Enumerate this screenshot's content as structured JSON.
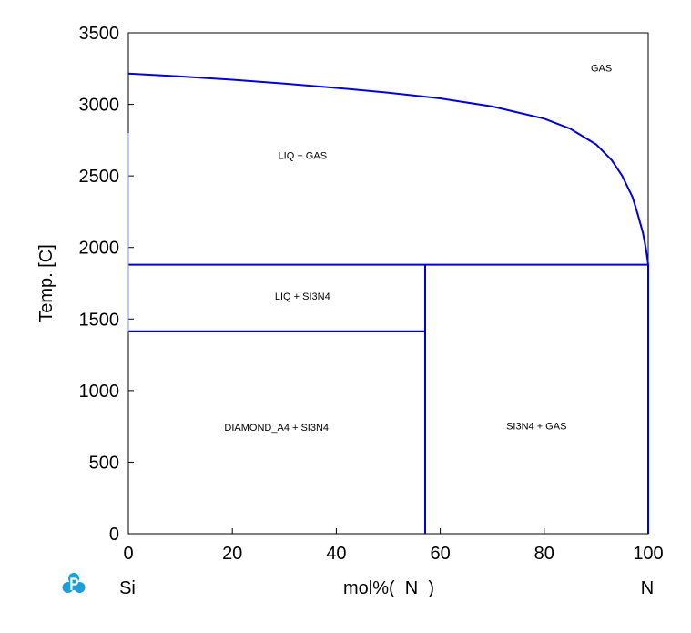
{
  "chart_data": {
    "type": "line",
    "title": "",
    "xlabel": "mol%(  N  )",
    "ylabel": "Temp.  [C]",
    "xlim": [
      0,
      100
    ],
    "ylim": [
      0,
      3500
    ],
    "x_ticks": [
      "0",
      "20",
      "40",
      "60",
      "80",
      "100"
    ],
    "y_ticks": [
      "0",
      "500",
      "1000",
      "1500",
      "2000",
      "2500",
      "3000",
      "3500"
    ],
    "left_component": "Si",
    "right_component": "N",
    "line_color": "#0000dd",
    "grid": false,
    "region_labels": [
      {
        "text": "GAS",
        "x": 91,
        "y": 3230
      },
      {
        "text": "LIQ + GAS",
        "x": 33.5,
        "y": 2620
      },
      {
        "text": "LIQ + SI3N4",
        "x": 33.5,
        "y": 1635
      },
      {
        "text": "DIAMOND_A4 + SI3N4",
        "x": 28.5,
        "y": 720
      },
      {
        "text": "SI3N4 + GAS",
        "x": 78.5,
        "y": 730
      }
    ],
    "series": [
      {
        "values": [
          [
            0,
            3215
          ],
          [
            10,
            3195
          ],
          [
            20,
            3172
          ],
          [
            30,
            3145
          ],
          [
            40,
            3115
          ],
          [
            50,
            3082
          ],
          [
            60,
            3042
          ],
          [
            70,
            2985
          ],
          [
            80,
            2900
          ],
          [
            85,
            2830
          ],
          [
            90,
            2720
          ],
          [
            93,
            2610
          ],
          [
            95,
            2500
          ],
          [
            97,
            2350
          ],
          [
            98,
            2230
          ],
          [
            99,
            2100
          ],
          [
            99.6,
            1985
          ],
          [
            100,
            1880
          ]
        ]
      },
      {
        "values": [
          [
            0,
            1880
          ],
          [
            100,
            1880
          ]
        ]
      },
      {
        "values": [
          [
            0,
            1414
          ],
          [
            57.1,
            1414
          ]
        ]
      },
      {
        "values": [
          [
            57.1,
            0
          ],
          [
            57.1,
            1880
          ]
        ]
      },
      {
        "values": [
          [
            100,
            0
          ],
          [
            100,
            1880
          ]
        ]
      },
      {
        "values": [
          [
            0,
            1414
          ],
          [
            0,
            2800
          ]
        ]
      }
    ]
  }
}
